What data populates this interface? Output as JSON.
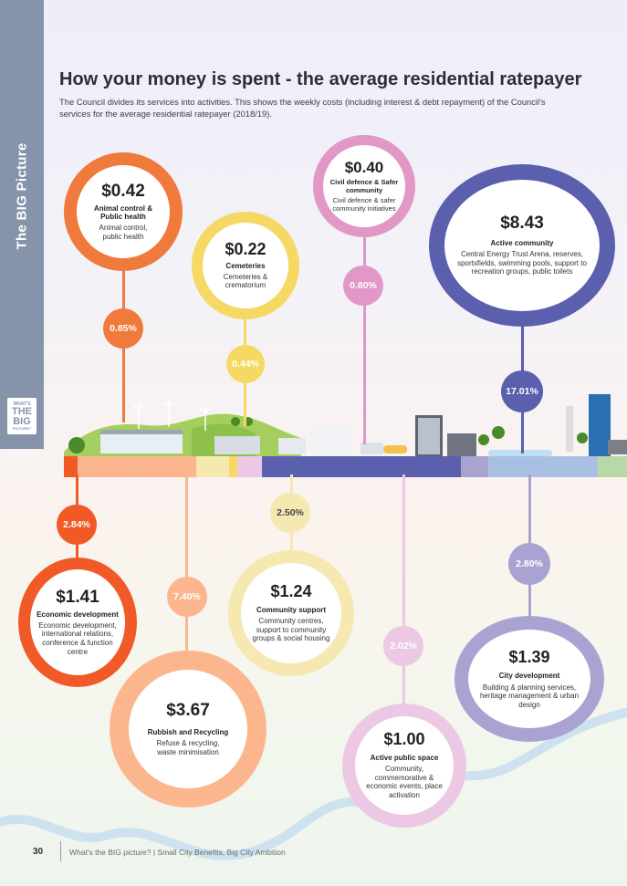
{
  "sidebar": {
    "label": "The BIG Picture",
    "logo_lines": [
      "WHAT'S",
      "THE BIG",
      "PICTURE?"
    ]
  },
  "header": {
    "title": "How your money is spent - the average residential ratepayer",
    "subtitle": "The Council divides its services into activities. This shows the weekly costs (including interest & debt repayment) of the Council's services for the average residential ratepayer (2018/19)."
  },
  "activities": [
    {
      "id": "animal",
      "amount": "$0.42",
      "category": "Animal control & Public health",
      "description": "Animal control, public health",
      "percent": "0.85%",
      "color": "#f07a3c"
    },
    {
      "id": "cemeteries",
      "amount": "$0.22",
      "category": "Cemeteries",
      "description": "Cemeteries & crematorium",
      "percent": "0.44%",
      "color": "#f5d964"
    },
    {
      "id": "civil",
      "amount": "$0.40",
      "category": "Civil defence & Safer community",
      "description": "Civil defence & safer community initiatives",
      "percent": "0.80%",
      "color": "#e198c6"
    },
    {
      "id": "active-community",
      "amount": "$8.43",
      "category": "Active community",
      "description": "Central Energy Trust Arena, reserves, sportsfields, swimming pools, support to recreation groups, public toilets",
      "percent": "17.01%",
      "color": "#5a5fae"
    },
    {
      "id": "economic",
      "amount": "$1.41",
      "category": "Economic development",
      "description": "Economic development, international relations, conference & function centre",
      "percent": "2.84%",
      "color": "#f15a27"
    },
    {
      "id": "rubbish",
      "amount": "$3.67",
      "category": "Rubbish and Recycling",
      "description": "Refuse & recycling, waste minimisation",
      "percent": "7.40%",
      "color": "#fbb68e"
    },
    {
      "id": "community-support",
      "amount": "$1.24",
      "category": "Community support",
      "description": "Community centres, support to community groups & social housing",
      "percent": "2.50%",
      "color": "#f5e8b0"
    },
    {
      "id": "public-space",
      "amount": "$1.00",
      "category": "Active public space",
      "description": "Community, commemorative & economic events, place activation",
      "percent": "2.02%",
      "color": "#ecc8e4"
    },
    {
      "id": "city-dev",
      "amount": "$1.39",
      "category": "City development",
      "description": "Building & planning services, heritage management & urban design",
      "percent": "2.80%",
      "color": "#a9a3d2"
    }
  ],
  "footer": {
    "page_number": "30",
    "text": "What's the BIG picture? | Small City Benefits, Big City Ambition"
  }
}
